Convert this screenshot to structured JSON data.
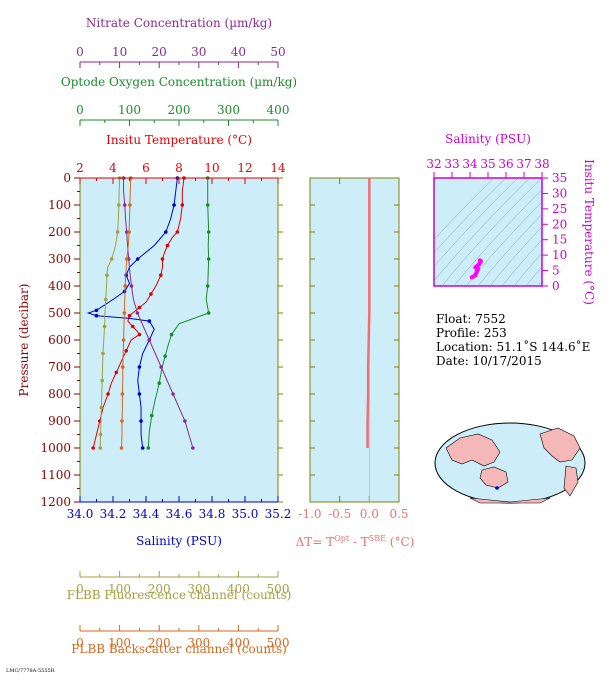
{
  "chart_data": [
    {
      "type": "line",
      "panel": "main-profile",
      "ylabel": "Pressure (decibar)",
      "yticks": [
        "0",
        "100",
        "200",
        "300",
        "400",
        "500",
        "600",
        "700",
        "800",
        "900",
        "1000",
        "1100",
        "1200"
      ],
      "ylim": [
        1200,
        0
      ],
      "axes": {
        "nitrate": {
          "label": "Nitrate Concentration (µm/kg)",
          "ticks": [
            "0",
            "10",
            "20",
            "30",
            "40",
            "50"
          ],
          "range": [
            0,
            50
          ],
          "color": "#8b2a8b"
        },
        "oxygen": {
          "label": "Optode Oxygen Concentration (µm/kg)",
          "ticks": [
            "0",
            "100",
            "200",
            "300",
            "400"
          ],
          "range": [
            0,
            400
          ],
          "color": "#1a8c2a"
        },
        "temperature": {
          "label": "Insitu Temperature (°C)",
          "ticks": [
            "2",
            "4",
            "6",
            "8",
            "10",
            "12",
            "14"
          ],
          "range": [
            2,
            14
          ],
          "color": "#e00000"
        },
        "salinity": {
          "label": "Salinity (PSU)",
          "ticks": [
            "34.0",
            "34.2",
            "34.4",
            "34.6",
            "34.8",
            "35.0",
            "35.2"
          ],
          "range": [
            34.0,
            35.2
          ],
          "color": "#0000c8"
        },
        "fluorescence": {
          "label": "FLBB Fluorescence channel (counts)",
          "ticks": [
            "0",
            "100",
            "200",
            "300",
            "400",
            "500"
          ],
          "range": [
            0,
            500
          ],
          "color": "#a0a040"
        },
        "backscatter": {
          "label": "FLBB Backscatter channel (counts)",
          "ticks": [
            "0",
            "100",
            "200",
            "300",
            "400",
            "500"
          ],
          "range": [
            0,
            500
          ],
          "color": "#d2691e"
        }
      },
      "series": [
        {
          "key": "temperature",
          "axis": "temperature",
          "color": "#e00000",
          "points": [
            [
              8.3,
              0
            ],
            [
              8.2,
              50
            ],
            [
              8.2,
              100
            ],
            [
              8.1,
              150
            ],
            [
              7.9,
              200
            ],
            [
              7.6,
              220
            ],
            [
              7.3,
              250
            ],
            [
              7.1,
              280
            ],
            [
              7.0,
              300
            ],
            [
              7.0,
              330
            ],
            [
              6.9,
              360
            ],
            [
              6.6,
              400
            ],
            [
              6.3,
              430
            ],
            [
              6.0,
              460
            ],
            [
              5.6,
              480
            ],
            [
              5.2,
              500
            ],
            [
              5.0,
              510
            ],
            [
              4.9,
              530
            ],
            [
              5.2,
              550
            ],
            [
              5.5,
              570
            ],
            [
              5.6,
              580
            ],
            [
              5.1,
              600
            ],
            [
              4.8,
              640
            ],
            [
              4.5,
              680
            ],
            [
              4.2,
              720
            ],
            [
              3.9,
              760
            ],
            [
              3.7,
              800
            ],
            [
              3.4,
              850
            ],
            [
              3.2,
              900
            ],
            [
              3.0,
              950
            ],
            [
              2.8,
              1000
            ]
          ]
        },
        {
          "key": "salinity",
          "axis": "salinity",
          "color": "#0000c8",
          "points": [
            [
              34.59,
              0
            ],
            [
              34.58,
              50
            ],
            [
              34.57,
              100
            ],
            [
              34.55,
              150
            ],
            [
              34.52,
              200
            ],
            [
              34.45,
              250
            ],
            [
              34.35,
              300
            ],
            [
              34.3,
              330
            ],
            [
              34.28,
              360
            ],
            [
              34.3,
              390
            ],
            [
              34.27,
              420
            ],
            [
              34.2,
              450
            ],
            [
              34.1,
              490
            ],
            [
              34.05,
              500
            ],
            [
              34.1,
              510
            ],
            [
              34.3,
              520
            ],
            [
              34.42,
              530
            ],
            [
              34.45,
              560
            ],
            [
              34.42,
              600
            ],
            [
              34.38,
              650
            ],
            [
              34.36,
              700
            ],
            [
              34.35,
              750
            ],
            [
              34.36,
              800
            ],
            [
              34.37,
              850
            ],
            [
              34.37,
              900
            ],
            [
              34.37,
              950
            ],
            [
              34.38,
              1000
            ]
          ]
        },
        {
          "key": "oxygen",
          "axis": "oxygen",
          "color": "#1a8c2a",
          "points": [
            [
              258,
              0
            ],
            [
              258,
              50
            ],
            [
              258,
              100
            ],
            [
              259,
              150
            ],
            [
              260,
              200
            ],
            [
              259,
              250
            ],
            [
              260,
              300
            ],
            [
              259,
              350
            ],
            [
              258,
              400
            ],
            [
              255,
              450
            ],
            [
              260,
              500
            ],
            [
              200,
              540
            ],
            [
              185,
              580
            ],
            [
              178,
              620
            ],
            [
              172,
              660
            ],
            [
              166,
              700
            ],
            [
              160,
              760
            ],
            [
              152,
              820
            ],
            [
              145,
              880
            ],
            [
              140,
              940
            ],
            [
              138,
              1000
            ]
          ]
        },
        {
          "key": "nitrate",
          "axis": "nitrate",
          "color": "#8b2a8b",
          "points": [
            [
              11,
              0
            ],
            [
              11,
              50
            ],
            [
              11.3,
              100
            ],
            [
              11.5,
              150
            ],
            [
              11.8,
              200
            ],
            [
              12,
              250
            ],
            [
              12.3,
              300
            ],
            [
              12.6,
              350
            ],
            [
              13,
              400
            ],
            [
              13.5,
              450
            ],
            [
              14.5,
              500
            ],
            [
              16,
              550
            ],
            [
              17.5,
              600
            ],
            [
              19,
              650
            ],
            [
              20.5,
              700
            ],
            [
              22,
              750
            ],
            [
              23.5,
              800
            ],
            [
              25,
              850
            ],
            [
              26.5,
              900
            ],
            [
              27.5,
              950
            ],
            [
              28.5,
              1000
            ]
          ]
        },
        {
          "key": "fluorescence",
          "axis": "fluorescence",
          "color": "#a0a040",
          "points": [
            [
              100,
              0
            ],
            [
              99,
              50
            ],
            [
              98,
              100
            ],
            [
              97,
              150
            ],
            [
              95,
              200
            ],
            [
              90,
              250
            ],
            [
              80,
              300
            ],
            [
              70,
              330
            ],
            [
              68,
              360
            ],
            [
              67,
              400
            ],
            [
              65,
              450
            ],
            [
              63,
              500
            ],
            [
              62,
              550
            ],
            [
              60,
              600
            ],
            [
              58,
              650
            ],
            [
              57,
              700
            ],
            [
              56,
              750
            ],
            [
              55,
              800
            ],
            [
              54,
              850
            ],
            [
              53,
              900
            ],
            [
              52,
              950
            ],
            [
              51,
              1000
            ]
          ]
        },
        {
          "key": "backscatter",
          "axis": "backscatter",
          "color": "#d2691e",
          "points": [
            [
              128,
              0
            ],
            [
              127,
              50
            ],
            [
              126,
              100
            ],
            [
              125,
              150
            ],
            [
              124,
              200
            ],
            [
              122,
              250
            ],
            [
              118,
              300
            ],
            [
              116,
              350
            ],
            [
              114,
              400
            ],
            [
              113,
              450
            ],
            [
              112,
              500
            ],
            [
              111,
              550
            ],
            [
              110,
              600
            ],
            [
              109,
              650
            ],
            [
              108,
              700
            ],
            [
              108,
              750
            ],
            [
              107,
              800
            ],
            [
              107,
              850
            ],
            [
              106,
              900
            ],
            [
              106,
              950
            ],
            [
              105,
              1000
            ]
          ]
        }
      ]
    },
    {
      "type": "line",
      "panel": "delta-temperature",
      "xlabel_main": "ΔT= T",
      "xlabel_sup1": "Opt",
      "xlabel_mid": " - T",
      "xlabel_sup2": "SBE",
      "xlabel_unit": " (°C)",
      "xticks": [
        "-1.0",
        "-0.5",
        "0.0",
        "0.5"
      ],
      "xlim": [
        -1.0,
        0.5
      ],
      "ylim": [
        1200,
        0
      ],
      "color": "#f07070",
      "points": [
        [
          0.0,
          0
        ],
        [
          0.0,
          100
        ],
        [
          0.0,
          200
        ],
        [
          0.0,
          300
        ],
        [
          0.0,
          400
        ],
        [
          0.0,
          500
        ],
        [
          -0.01,
          600
        ],
        [
          -0.02,
          700
        ],
        [
          -0.02,
          800
        ],
        [
          -0.03,
          900
        ],
        [
          -0.03,
          1000
        ]
      ]
    },
    {
      "type": "scatter",
      "panel": "ts-diagram",
      "xlabel": "Salinity (PSU)",
      "ylabel": "Insitu Temperature (°C)",
      "xticks": [
        "32",
        "33",
        "34",
        "35",
        "36",
        "37",
        "38"
      ],
      "yticks": [
        "0",
        "5",
        "10",
        "15",
        "20",
        "25",
        "30",
        "35"
      ],
      "xlim": [
        32,
        38
      ],
      "ylim": [
        0,
        35
      ],
      "color": "#ff00ff",
      "points": [
        [
          34.1,
          2.8
        ],
        [
          34.3,
          3.5
        ],
        [
          34.35,
          4.2
        ],
        [
          34.4,
          5.0
        ],
        [
          34.45,
          5.6
        ],
        [
          34.3,
          6.0
        ],
        [
          34.5,
          7.0
        ],
        [
          34.6,
          8.0
        ],
        [
          34.55,
          8.3
        ]
      ]
    }
  ],
  "info": {
    "float": "Float:  7552",
    "profile": "Profile:  253",
    "location": "Location:  51.1˚S  144.6˚E",
    "date": "Date:  10/17/2015"
  },
  "colors": {
    "plot_bg": "#cdeef8",
    "map_ocean": "#cdeef8",
    "map_land": "#f4b8b8"
  }
}
